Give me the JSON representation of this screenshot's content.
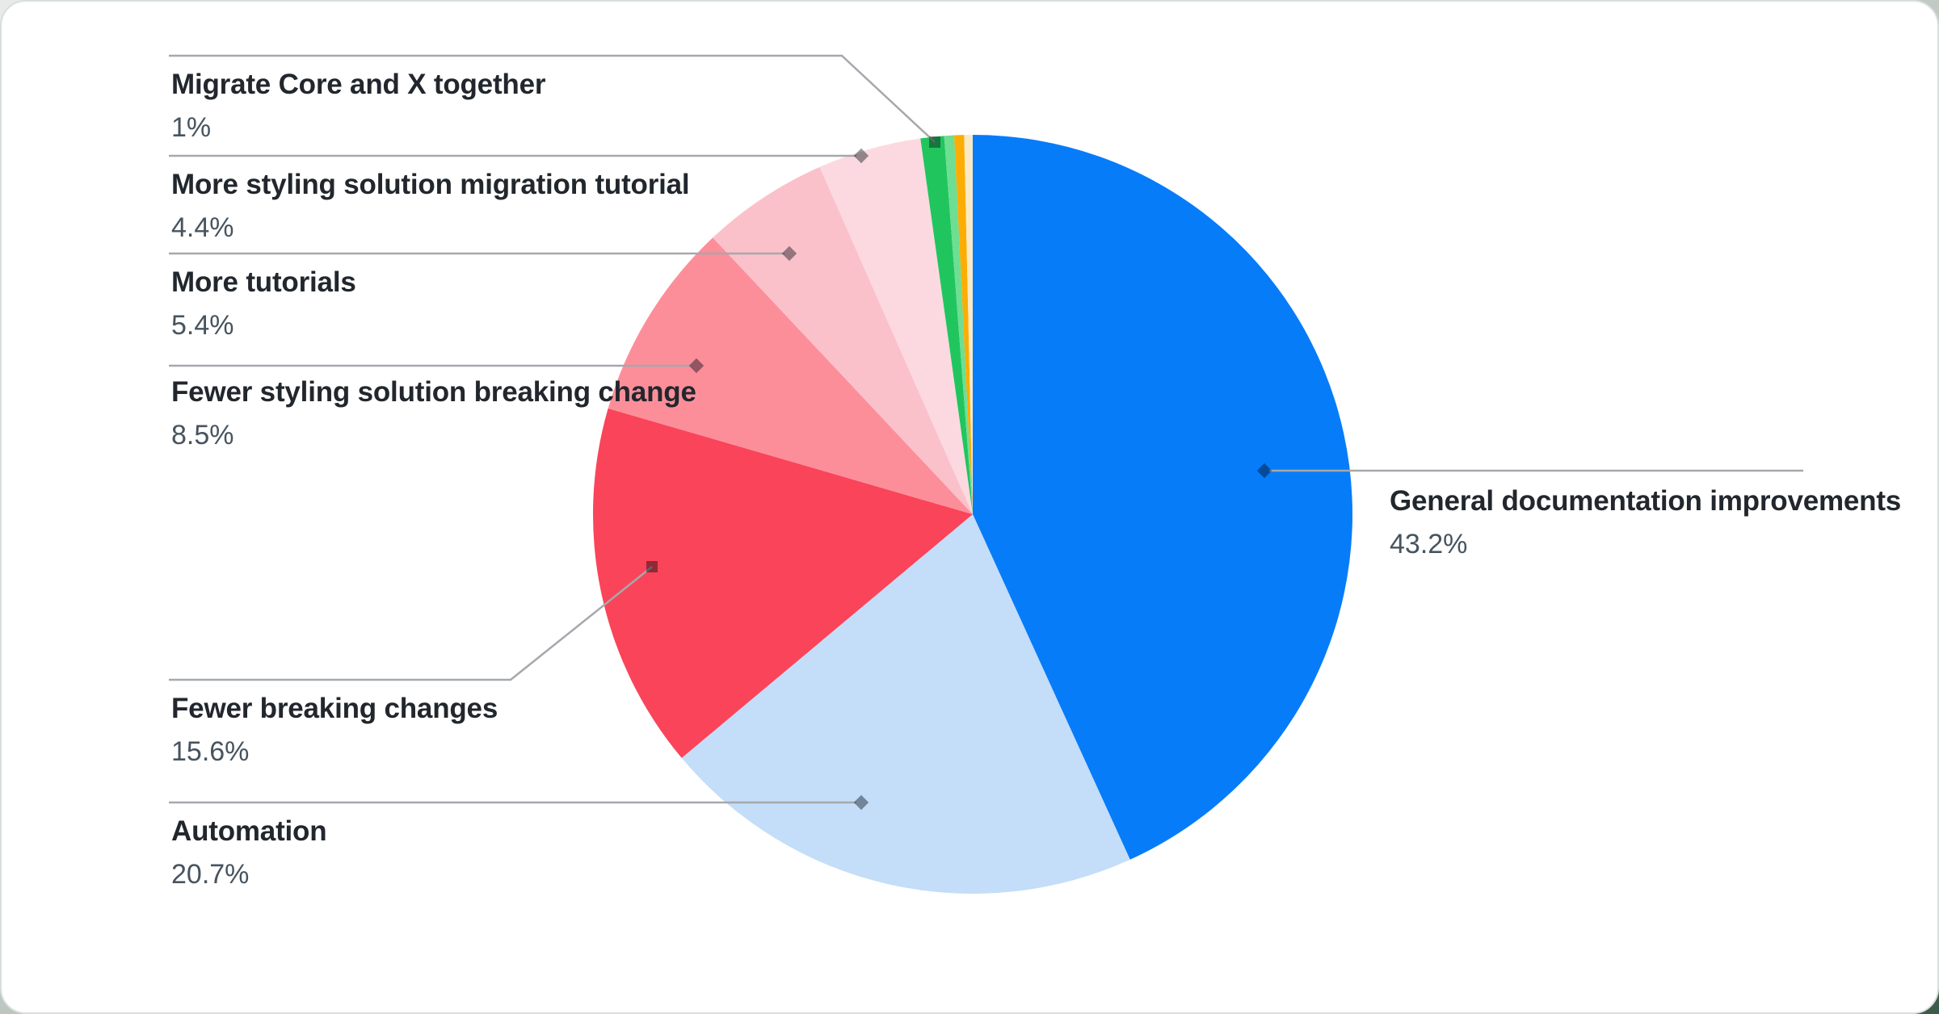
{
  "chart_data": {
    "type": "pie",
    "title": "",
    "direction": "clockwise",
    "start_angle_deg": 0,
    "legend_position": "callout-labels",
    "slices": [
      {
        "label": "General documentation improvements",
        "value": 43.2,
        "pct_label": "43.2%",
        "color": "#077cf9"
      },
      {
        "label": "Automation",
        "value": 20.7,
        "pct_label": "20.7%",
        "color": "#c4ddf9"
      },
      {
        "label": "Fewer breaking changes",
        "value": 15.6,
        "pct_label": "15.6%",
        "color": "#fa4459"
      },
      {
        "label": "Fewer styling solution breaking change",
        "value": 8.5,
        "pct_label": "8.5%",
        "color": "#fc8e9a"
      },
      {
        "label": "More tutorials",
        "value": 5.4,
        "pct_label": "5.4%",
        "color": "#fbc1cb"
      },
      {
        "label": "More styling solution migration tutorial",
        "value": 4.4,
        "pct_label": "4.4%",
        "color": "#fcd9e0"
      },
      {
        "label": "Migrate Core and X together",
        "value": 1.0,
        "pct_label": "1%",
        "color": "#21c55e"
      },
      {
        "label": "",
        "value": 0.42,
        "pct_label": "",
        "color": "#6ede92"
      },
      {
        "label": "",
        "value": 0.42,
        "pct_label": "",
        "color": "#fbad04"
      },
      {
        "label": "",
        "value": 0.36,
        "pct_label": "",
        "color": "#f9e9c5"
      }
    ]
  },
  "callouts": [
    {
      "label": "Migrate Core and X together",
      "pct": "1%"
    },
    {
      "label": "More styling solution migration tutorial",
      "pct": "4.4%"
    },
    {
      "label": "More tutorials",
      "pct": "5.4%"
    },
    {
      "label": "Fewer styling solution breaking change",
      "pct": "8.5%"
    },
    {
      "label": "Fewer breaking changes",
      "pct": "15.6%"
    },
    {
      "label": "Automation",
      "pct": "20.7%"
    },
    {
      "label": "General documentation improvements",
      "pct": "43.2%"
    }
  ],
  "style": {
    "leader_line_color": "#a5a8ac",
    "marker_color": "#8a8f94",
    "label_title_color": "#21272d",
    "label_pct_color": "#47545f",
    "card_background": "#ffffff",
    "card_border_color": "#d9dee1"
  }
}
